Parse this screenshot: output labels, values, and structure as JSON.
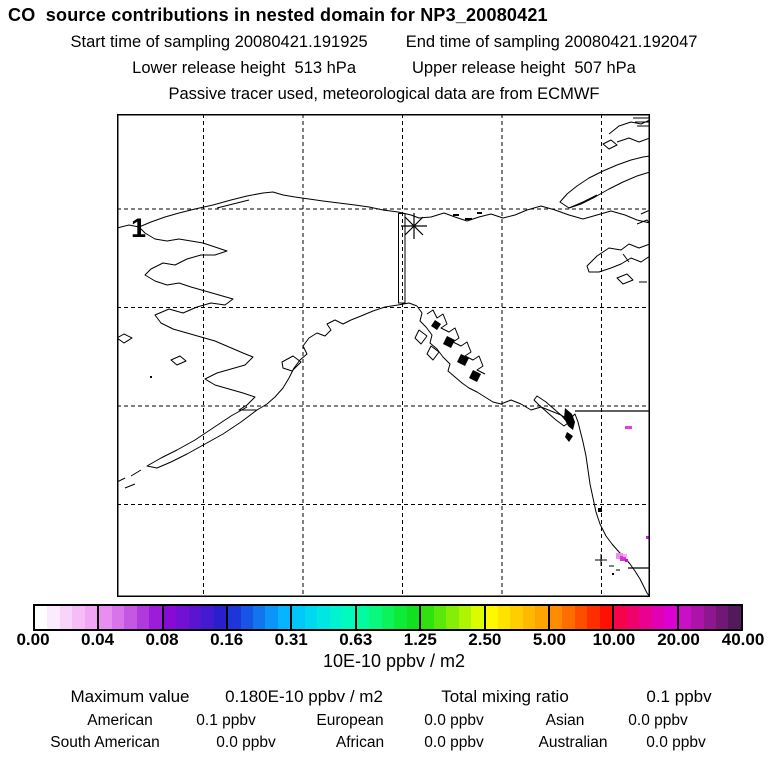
{
  "header": {
    "title": "CO  source contributions in nested domain for NP3_20080421",
    "start_time": "Start time of sampling 20080421.191925",
    "end_time": "End time of sampling 20080421.192047",
    "lower_release": "Lower release height  513 hPa",
    "upper_release": "Upper release height  507 hPa",
    "tracer_note": "Passive tracer used, meteorological data are from ECMWF"
  },
  "map": {
    "station_label": "1",
    "release_marker": "asterisk-with-vertical-sampling-box",
    "hotspot_colors": [
      "#ee8cee",
      "#d633d6",
      "#e53ce5",
      "#bd28cd"
    ]
  },
  "colorbar": {
    "units": "10E-10 ppbv / m2",
    "ticks": [
      "0.00",
      "0.04",
      "0.08",
      "0.16",
      "0.31",
      "0.63",
      "1.25",
      "2.50",
      "5.00",
      "10.00",
      "20.00",
      "40.00"
    ],
    "segments": [
      [
        "#ffffff",
        "#fceafd",
        "#f8d4fa",
        "#f4bdf8",
        "#f0a6f5"
      ],
      [
        "#e98ef1",
        "#d873eb",
        "#c557e5",
        "#b13adf",
        "#9d1cd9"
      ],
      [
        "#8a0ad5",
        "#7210d3",
        "#5a15d1",
        "#421acf",
        "#2a1fcd"
      ],
      [
        "#1e35da",
        "#1955e4",
        "#1375ee",
        "#0c95f8",
        "#05b5ff"
      ],
      [
        "#00c8fb",
        "#00d8ef",
        "#00e7e2",
        "#00f3d0",
        "#00fbbd"
      ],
      [
        "#00fba0",
        "#0af87d",
        "#0cf25a",
        "#0eea38",
        "#10e01d"
      ],
      [
        "#2fe10e",
        "#59e80a",
        "#84ee07",
        "#aff503",
        "#dbfb00"
      ],
      [
        "#fff800",
        "#ffe300",
        "#ffce00",
        "#ffb900",
        "#ffa400"
      ],
      [
        "#ff8b00",
        "#ff6c00",
        "#ff4d00",
        "#ff2e00",
        "#fe1004"
      ],
      [
        "#f70349",
        "#f0026d",
        "#e90191",
        "#e200b5",
        "#dd00d2"
      ],
      [
        "#ca10c4",
        "#ac14a9",
        "#8e168f",
        "#701874",
        "#521a5a"
      ]
    ]
  },
  "stats": {
    "max_label": "Maximum value",
    "max_value": "0.180E-10 ppbv / m2",
    "ratio_label": "Total mixing ratio",
    "ratio_value": "0.1 ppbv",
    "regions": [
      {
        "label": "American",
        "value": "0.1 ppbv"
      },
      {
        "label": "European",
        "value": "0.0 ppbv"
      },
      {
        "label": "Asian",
        "value": "0.0 ppbv"
      },
      {
        "label": "South American",
        "value": "0.0 ppbv"
      },
      {
        "label": "African",
        "value": "0.0 ppbv"
      },
      {
        "label": "Australian",
        "value": "0.0 ppbv"
      }
    ]
  },
  "chart_data": {
    "type": "heatmap",
    "title": "CO  source contributions in nested domain for NP3_20080421",
    "subtitle_lines": [
      "Start time of sampling 20080421.191925    End time of sampling 20080421.192047",
      "Lower release height  513 hPa      Upper release height  507 hPa",
      "Passive tracer used, meteorological data are from ECMWF"
    ],
    "colorbar_ticks": [
      0.0,
      0.04,
      0.08,
      0.16,
      0.31,
      0.63,
      1.25,
      2.5,
      5.0,
      10.0,
      20.0,
      40.0
    ],
    "colorbar_units": "10E-10 ppbv / m2",
    "max_value": "0.180E-10 ppbv / m2",
    "total_mixing_ratio_ppbv": 0.1,
    "contributions_ppbv": {
      "American": 0.1,
      "European": 0.0,
      "Asian": 0.0,
      "South American": 0.0,
      "African": 0.0,
      "Australian": 0.0
    },
    "map_region": "Alaska, Canadian Arctic and western North America coastline",
    "annotations": [
      "station label 1 on west Alaska coast",
      "asterisk release marker with narrow vertical sampling box on Beaufort coast",
      "magenta concentration pixels near US west coast"
    ],
    "gridlines": "dashed lat/lon grid, solid political borders at 49N and Mexico"
  }
}
